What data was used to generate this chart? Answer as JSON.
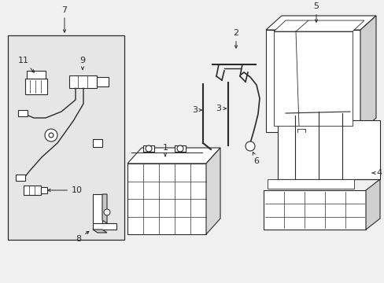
{
  "bg": "#f0f0f0",
  "fg": "#2a2a2a",
  "white": "#ffffff",
  "gray": "#d0d0d0",
  "box7_bg": "#e8e8e8",
  "figsize": [
    4.89,
    3.6
  ],
  "dpi": 100
}
